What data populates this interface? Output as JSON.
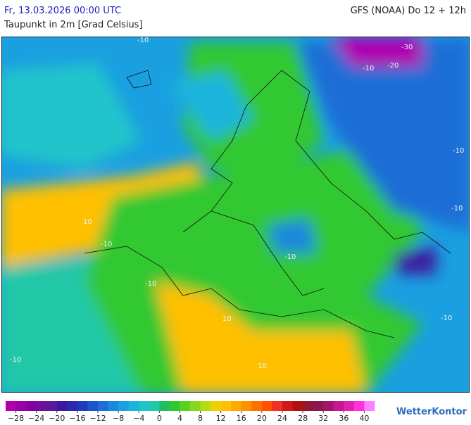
{
  "header": {
    "valid_time": "Fr, 13.03.2026 00:00 UTC",
    "model_run": "GFS (NOAA) Do 12 + 12h",
    "parameter": "Taupunkt in 2m [Grad Celsius]"
  },
  "map": {
    "contour_labels": [
      "-10",
      "-30",
      "-20",
      "-10",
      "-10",
      "-10",
      "10",
      "-10",
      "-10",
      "-10",
      "10",
      "-10",
      "10",
      "-10"
    ]
  },
  "legend": {
    "range": [
      -30,
      42
    ],
    "colors": [
      "#b000b0",
      "#9a00a8",
      "#8400a0",
      "#6e1098",
      "#5a1a98",
      "#3c1aa0",
      "#2a2ab0",
      "#1e3cc0",
      "#1a55cc",
      "#1a6ed6",
      "#1a88dc",
      "#1aa0e0",
      "#1ab4dc",
      "#20c4cc",
      "#22c8a8",
      "#1cc060",
      "#30c830",
      "#5ad21e",
      "#86d81a",
      "#b4dc14",
      "#f0d000",
      "#ffc000",
      "#ffa800",
      "#ff9000",
      "#ff7000",
      "#ff5000",
      "#f03020",
      "#d01818",
      "#b01010",
      "#901830",
      "#8c1850",
      "#a0186a",
      "#c41890",
      "#e020b0",
      "#ff30e0",
      "#ff80ff"
    ],
    "ticks": [
      {
        "value": -28,
        "label": "−28"
      },
      {
        "value": -24,
        "label": "−24"
      },
      {
        "value": -20,
        "label": "−20"
      },
      {
        "value": -16,
        "label": "−16"
      },
      {
        "value": -12,
        "label": "−12"
      },
      {
        "value": -8,
        "label": "−8"
      },
      {
        "value": -4,
        "label": "−4"
      },
      0,
      4,
      8,
      12,
      16,
      20,
      24,
      28,
      32,
      36,
      40
    ]
  },
  "logo": "WetterKontor"
}
